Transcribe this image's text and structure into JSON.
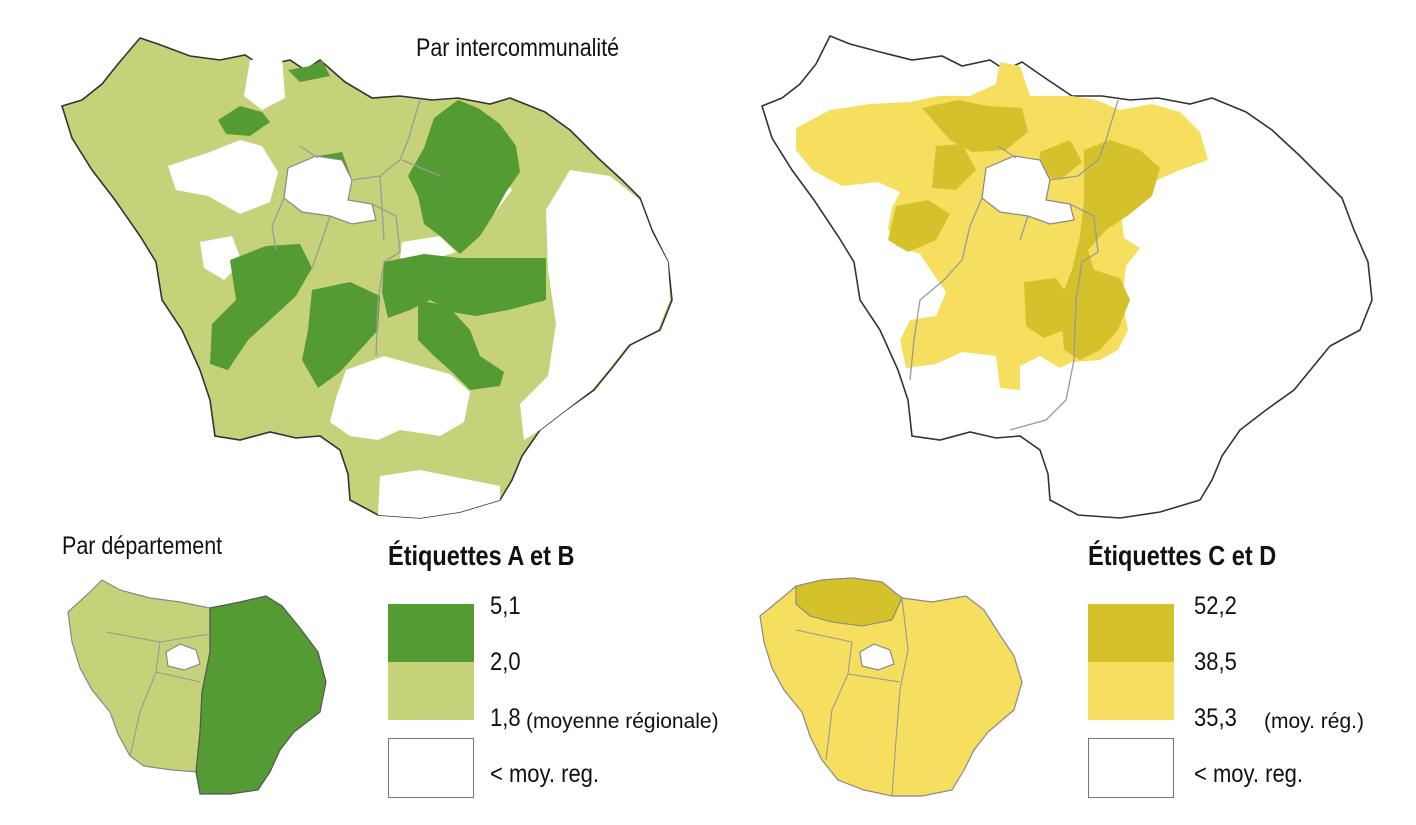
{
  "captions": {
    "by_intercommunality": "Par intercommunalité",
    "by_department": "Par département"
  },
  "legend_ab": {
    "title": "Étiquettes A et B",
    "breaks": [
      "5,1",
      "2,0",
      "1,8"
    ],
    "regional_note": "(moyenne régionale)",
    "below_average": "< moy. reg.",
    "colors": {
      "high": "#559b33",
      "mid": "#c6d27a",
      "none": "#ffffff"
    }
  },
  "legend_cd": {
    "title": "Étiquettes C et D",
    "breaks": [
      "52,2",
      "38,5",
      "35,3"
    ],
    "regional_note": "(moy. rég.)",
    "below_average": "< moy. reg.",
    "colors": {
      "high": "#d4c12c",
      "mid": "#f6df5e",
      "none": "#ffffff"
    }
  }
}
